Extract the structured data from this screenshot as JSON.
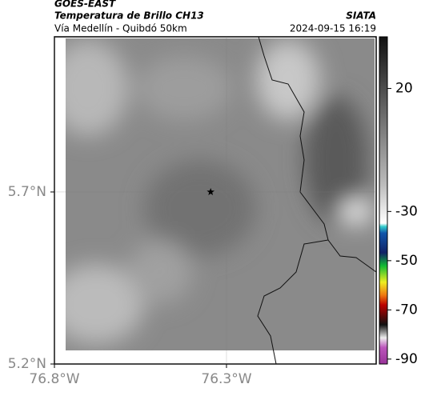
{
  "header": {
    "satellite": "GOES-EAST",
    "product": "Temperatura de Brillo CH13",
    "source": "SIATA",
    "region": "Vía Medellín - Quibdó 50km",
    "timestamp": "2024-09-15 16:19"
  },
  "map": {
    "xlim": [
      -76.8,
      -75.865
    ],
    "ylim": [
      5.2,
      6.151
    ],
    "xticks": [
      {
        "value": -76.8,
        "label": "76.8°W"
      },
      {
        "value": -76.3,
        "label": "76.3°W"
      }
    ],
    "yticks": [
      {
        "value": 5.2,
        "label": "5.2°N"
      },
      {
        "value": 5.7,
        "label": "5.7°N"
      }
    ],
    "marker": {
      "lon": -76.346,
      "lat": 5.7
    }
  },
  "colorbar": {
    "lim": [
      -92,
      41
    ],
    "ticks": [
      20,
      -30,
      -50,
      -70,
      -90
    ]
  }
}
